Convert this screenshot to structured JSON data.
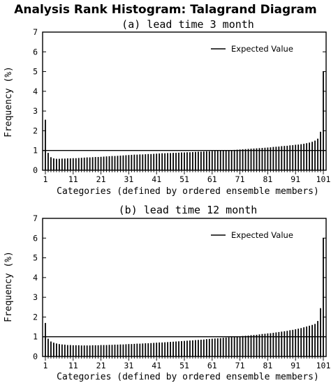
{
  "title": "Analysis Rank Histogram: Talagrand Diagram",
  "chart_data": [
    {
      "type": "bar",
      "title": "(a) lead time 3 month",
      "xlabel": "Categories (defined by ordered ensemble members)",
      "ylabel": "Frequency (%)",
      "ylim": [
        0,
        7
      ],
      "yticks": [
        0,
        1,
        2,
        3,
        4,
        5,
        6,
        7
      ],
      "xlim": [
        0,
        102
      ],
      "xticks": [
        1,
        11,
        21,
        31,
        41,
        51,
        61,
        71,
        81,
        91,
        101
      ],
      "categories_count": 101,
      "legend": {
        "label": "Expected Value",
        "placement": "top-right"
      },
      "expected_value": 1.0,
      "values": [
        2.56,
        0.88,
        0.66,
        0.6,
        0.58,
        0.58,
        0.59,
        0.59,
        0.6,
        0.6,
        0.61,
        0.61,
        0.62,
        0.63,
        0.64,
        0.65,
        0.65,
        0.66,
        0.67,
        0.67,
        0.68,
        0.69,
        0.7,
        0.71,
        0.72,
        0.72,
        0.73,
        0.74,
        0.75,
        0.76,
        0.77,
        0.78,
        0.79,
        0.79,
        0.8,
        0.8,
        0.81,
        0.82,
        0.82,
        0.83,
        0.84,
        0.85,
        0.86,
        0.86,
        0.87,
        0.87,
        0.88,
        0.88,
        0.89,
        0.9,
        0.9,
        0.91,
        0.91,
        0.92,
        0.93,
        0.94,
        0.94,
        0.95,
        0.96,
        0.96,
        0.97,
        0.98,
        0.98,
        0.99,
        1.0,
        1.0,
        1.01,
        1.02,
        1.03,
        1.04,
        1.05,
        1.06,
        1.07,
        1.08,
        1.09,
        1.1,
        1.11,
        1.12,
        1.13,
        1.14,
        1.15,
        1.16,
        1.18,
        1.19,
        1.2,
        1.22,
        1.23,
        1.24,
        1.26,
        1.27,
        1.29,
        1.3,
        1.32,
        1.34,
        1.37,
        1.4,
        1.44,
        1.5,
        1.6,
        1.95,
        5.0
      ]
    },
    {
      "type": "bar",
      "title": "(b) lead time 12 month",
      "xlabel": "Categories (defined by ordered ensemble members)",
      "ylabel": "Frequency (%)",
      "ylim": [
        0,
        7
      ],
      "yticks": [
        0,
        1,
        2,
        3,
        4,
        5,
        6,
        7
      ],
      "xlim": [
        0,
        102
      ],
      "xticks": [
        1,
        11,
        21,
        31,
        41,
        51,
        61,
        71,
        81,
        91,
        101
      ],
      "categories_count": 101,
      "legend": {
        "label": "Expected Value",
        "placement": "top-right"
      },
      "expected_value": 1.0,
      "values": [
        1.7,
        0.9,
        0.76,
        0.7,
        0.66,
        0.63,
        0.61,
        0.6,
        0.58,
        0.58,
        0.57,
        0.57,
        0.57,
        0.56,
        0.56,
        0.56,
        0.56,
        0.57,
        0.57,
        0.57,
        0.58,
        0.58,
        0.58,
        0.59,
        0.59,
        0.6,
        0.6,
        0.61,
        0.61,
        0.62,
        0.63,
        0.63,
        0.64,
        0.65,
        0.65,
        0.66,
        0.67,
        0.67,
        0.68,
        0.69,
        0.7,
        0.71,
        0.71,
        0.72,
        0.73,
        0.74,
        0.75,
        0.76,
        0.77,
        0.78,
        0.79,
        0.8,
        0.81,
        0.82,
        0.83,
        0.84,
        0.85,
        0.86,
        0.88,
        0.89,
        0.9,
        0.91,
        0.92,
        0.93,
        0.95,
        0.96,
        0.97,
        0.98,
        1.0,
        1.01,
        1.02,
        1.04,
        1.05,
        1.06,
        1.08,
        1.09,
        1.1,
        1.12,
        1.14,
        1.15,
        1.17,
        1.18,
        1.2,
        1.22,
        1.24,
        1.26,
        1.28,
        1.3,
        1.33,
        1.35,
        1.38,
        1.41,
        1.44,
        1.48,
        1.52,
        1.56,
        1.6,
        1.65,
        1.8,
        2.45,
        6.0
      ]
    }
  ]
}
